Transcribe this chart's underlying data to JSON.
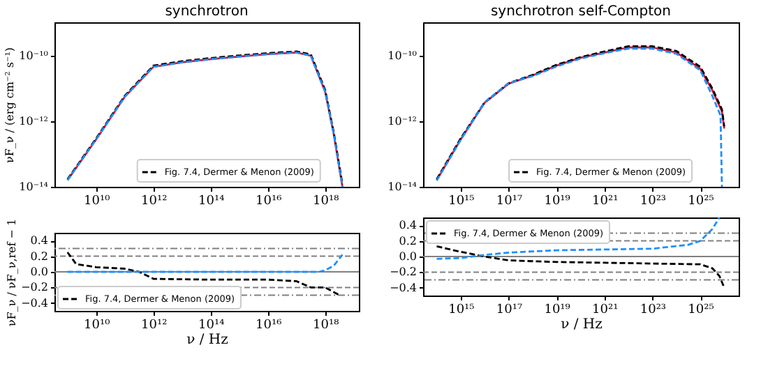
{
  "chart_data": [
    {
      "type": "line",
      "title": "synchrotron",
      "ylabel": "νF_ν / (erg cm⁻² s⁻¹)",
      "log": "xy",
      "legend": "bottom",
      "grid": false,
      "xlim": [
        350000000.0,
        1.5e+19
      ],
      "ylim": [
        1e-14,
        1.05e-09
      ],
      "xticks": [
        {
          "value": 10000000000.0,
          "label": "10¹⁰"
        },
        {
          "value": 1000000000000.0,
          "label": "10¹²"
        },
        {
          "value": 100000000000000.0,
          "label": "10¹⁴"
        },
        {
          "value": 1e+16,
          "label": "10¹⁶"
        },
        {
          "value": 1e+18,
          "label": "10¹⁸"
        }
      ],
      "yticks": [
        {
          "value": 1e-14,
          "label": "10⁻¹⁴"
        },
        {
          "value": 1e-12,
          "label": "10⁻¹²"
        },
        {
          "value": 1e-10,
          "label": "10⁻¹⁰"
        }
      ],
      "x": [
        1000000000.0,
        10000000000.0,
        100000000000.0,
        1000000000000.0,
        10000000000000.0,
        100000000000000.0,
        1000000000000000.0,
        1e+16,
        1e+17,
        3.16e+17,
        1e+18,
        2e+18,
        4e+18
      ],
      "series": [
        {
          "color": "#dc143c",
          "line_style": "solid",
          "values": [
            1.6e-14,
            2.8e-13,
            5.6e-12,
            4.6e-11,
            6.3e-11,
            7.9e-11,
            9.5e-11,
            1.12e-10,
            1.26e-10,
            1e-10,
            7.9e-12,
            4e-13,
            1e-14
          ]
        },
        {
          "name": "Fig. 7.4, Dermer & Menon (2009)",
          "color": "#000000",
          "line_style": "dashed",
          "values": [
            1.7e-14,
            3e-13,
            6e-12,
            5e-11,
            6.8e-11,
            8.5e-11,
            1.02e-10,
            1.2e-10,
            1.35e-10,
            1.1e-10,
            9e-12,
            4.5e-13,
            1.2e-14
          ]
        },
        {
          "color": "#1e90ff",
          "line_style": "dashed",
          "values": [
            1.6e-14,
            2.8e-13,
            5.6e-12,
            4.6e-11,
            6.3e-11,
            7.9e-11,
            9.5e-11,
            1.12e-10,
            1.26e-10,
            1e-10,
            7.9e-12,
            4e-13,
            1e-14
          ]
        }
      ]
    },
    {
      "type": "line",
      "title": "synchrotron self-Compton",
      "log": "xy",
      "legend": "bottom",
      "grid": false,
      "xlim": [
        27000000000000.0,
        4e+26
      ],
      "ylim": [
        1e-14,
        1.05e-09
      ],
      "xticks": [
        {
          "value": 1000000000000000.0,
          "label": "10¹⁵"
        },
        {
          "value": 1e+17,
          "label": "10¹⁷"
        },
        {
          "value": 1e+19,
          "label": "10¹⁹"
        },
        {
          "value": 1e+21,
          "label": "10²¹"
        },
        {
          "value": 1e+23,
          "label": "10²³"
        },
        {
          "value": 1e+25,
          "label": "10²⁵"
        }
      ],
      "yticks": [
        {
          "value": 1e-14,
          "label": "10⁻¹⁴"
        },
        {
          "value": 1e-12,
          "label": "10⁻¹²"
        },
        {
          "value": 1e-10,
          "label": "10⁻¹⁰"
        }
      ],
      "x": [
        100000000000000.0,
        1000000000000000.0,
        1e+16,
        1e+17,
        1e+18,
        1e+19,
        1e+20,
        1e+21,
        1e+22,
        1e+23,
        1e+24,
        1e+25,
        3.16e+25,
        8e+25,
        1e+26
      ],
      "series": [
        {
          "color": "#dc143c",
          "line_style": "solid",
          "values": [
            1.6e-14,
            2.8e-13,
            3.7e-12,
            1.4e-11,
            2.5e-11,
            5e-11,
            8.7e-11,
            1.26e-10,
            1.8e-10,
            1.8e-10,
            1.26e-10,
            4e-11,
            9e-12,
            2e-12,
            6e-13
          ]
        },
        {
          "name": "Fig. 7.4, Dermer & Menon (2009)",
          "color": "#000000",
          "line_style": "dashed",
          "values": [
            1.7e-14,
            3e-13,
            3.8e-12,
            1.45e-11,
            2.6e-11,
            5.3e-11,
            9e-11,
            1.35e-10,
            1.95e-10,
            1.95e-10,
            1.4e-10,
            4.6e-11,
            1e-11,
            2.3e-12,
            7e-13
          ]
        },
        {
          "color": "#1e90ff",
          "line_style": "dashed",
          "x": [
            100000000000000.0,
            1000000000000000.0,
            1e+16,
            1e+17,
            1e+18,
            1e+19,
            1e+20,
            1e+21,
            1e+22,
            1e+23,
            1e+24,
            1e+25,
            3.16e+25,
            7e+25,
            8e+25
          ],
          "values": [
            1.55e-14,
            2.7e-13,
            3.8e-12,
            1.45e-11,
            2.4e-11,
            4.7e-11,
            8.2e-11,
            1.2e-10,
            1.65e-10,
            1.65e-10,
            1.15e-10,
            3.6e-11,
            6e-12,
            1.5e-12,
            1e-14
          ]
        }
      ]
    },
    {
      "type": "line",
      "xlabel": "ν / Hz",
      "ylabel": "νF_ν / νF_ν,ref − 1",
      "log": "x",
      "legend": "bottom left",
      "grid": false,
      "xlim": [
        350000000.0,
        1.5e+19
      ],
      "ylim": [
        -0.5,
        0.5
      ],
      "xticks": [
        {
          "value": 10000000000.0,
          "label": "10¹⁰"
        },
        {
          "value": 1000000000000.0,
          "label": "10¹²"
        },
        {
          "value": 100000000000000.0,
          "label": "10¹⁴"
        },
        {
          "value": 1e+16,
          "label": "10¹⁶"
        },
        {
          "value": 1e+18,
          "label": "10¹⁸"
        }
      ],
      "yticks": [
        {
          "value": -0.4,
          "label": "−0.4"
        },
        {
          "value": -0.2,
          "label": "−0.2"
        },
        {
          "value": 0,
          "label": "0.0"
        },
        {
          "value": 0.2,
          "label": "0.2"
        },
        {
          "value": 0.4,
          "label": "0.4"
        }
      ],
      "ref_lines": [
        {
          "axis": "y",
          "value": 0,
          "color": "#808080",
          "line_style": "solid"
        },
        {
          "axis": "y",
          "value": 0.2,
          "color": "#808080",
          "line_style": "dashed"
        },
        {
          "axis": "y",
          "value": -0.2,
          "color": "#808080",
          "line_style": "dashed"
        },
        {
          "axis": "y",
          "value": 0.3,
          "color": "#808080",
          "line_style": "dotted"
        },
        {
          "axis": "y",
          "value": -0.3,
          "color": "#808080",
          "line_style": "dotted"
        }
      ],
      "series": [
        {
          "name": "Fig. 7.4, Dermer & Menon (2009)",
          "color": "#000000",
          "line_style": "dashed",
          "x": [
            1000000000.0,
            2000000000.0,
            10000000000.0,
            100000000000.0,
            316000000000.0,
            1000000000000.0,
            100000000000000.0,
            1e+16,
            1e+17,
            3.16e+17,
            1e+18,
            3.16e+18
          ],
          "values": [
            0.25,
            0.1,
            0.06,
            0.04,
            0.0,
            -0.09,
            -0.1,
            -0.1,
            -0.12,
            -0.2,
            -0.2,
            -0.3
          ]
        },
        {
          "color": "#1e90ff",
          "line_style": "dashed",
          "x": [
            1000000000.0,
            1000000000000.0,
            1000000000000000.0,
            6e+17,
            1e+18,
            2e+18,
            4e+18
          ],
          "values": [
            0,
            0,
            0,
            0,
            0.02,
            0.08,
            0.22
          ]
        }
      ]
    },
    {
      "type": "line",
      "xlabel": "ν / Hz",
      "log": "x",
      "legend": "top left",
      "grid": false,
      "xlim": [
        27000000000000.0,
        4e+26
      ],
      "ylim": [
        -0.5,
        0.5
      ],
      "xticks": [
        {
          "value": 1000000000000000.0,
          "label": "10¹⁵"
        },
        {
          "value": 1e+17,
          "label": "10¹⁷"
        },
        {
          "value": 1e+19,
          "label": "10¹⁹"
        },
        {
          "value": 1e+21,
          "label": "10²¹"
        },
        {
          "value": 1e+23,
          "label": "10²³"
        },
        {
          "value": 1e+25,
          "label": "10²⁵"
        }
      ],
      "yticks": [
        {
          "value": -0.4,
          "label": "−0.4"
        },
        {
          "value": -0.2,
          "label": "−0.2"
        },
        {
          "value": 0,
          "label": "0.0"
        },
        {
          "value": 0.2,
          "label": "0.2"
        },
        {
          "value": 0.4,
          "label": "0.4"
        }
      ],
      "ref_lines": [
        {
          "axis": "y",
          "value": 0,
          "color": "#808080",
          "line_style": "solid"
        },
        {
          "axis": "y",
          "value": 0.2,
          "color": "#808080",
          "line_style": "dashed"
        },
        {
          "axis": "y",
          "value": -0.2,
          "color": "#808080",
          "line_style": "dashed"
        },
        {
          "axis": "y",
          "value": 0.3,
          "color": "#808080",
          "line_style": "dotted"
        },
        {
          "axis": "y",
          "value": -0.3,
          "color": "#808080",
          "line_style": "dotted"
        }
      ],
      "series": [
        {
          "name": "Fig. 7.4, Dermer & Menon (2009)",
          "color": "#000000",
          "line_style": "dashed",
          "x": [
            100000000000000.0,
            1000000000000000.0,
            1e+16,
            1e+17,
            1e+19,
            1e+21,
            1e+23,
            1e+25,
            3.16e+25,
            6.3e+25,
            1e+26
          ],
          "values": [
            0.13,
            0.06,
            0.0,
            -0.05,
            -0.07,
            -0.08,
            -0.09,
            -0.1,
            -0.15,
            -0.25,
            -0.4
          ]
        },
        {
          "color": "#1e90ff",
          "line_style": "dashed",
          "x": [
            100000000000000.0,
            1000000000000000.0,
            1e+16,
            1e+17,
            1e+19,
            1e+21,
            1e+23,
            3.16e+24,
            1e+25,
            3.16e+25,
            6.3e+25
          ],
          "values": [
            -0.03,
            -0.02,
            0.02,
            0.05,
            0.08,
            0.09,
            0.1,
            0.15,
            0.2,
            0.35,
            0.5
          ]
        }
      ]
    }
  ]
}
